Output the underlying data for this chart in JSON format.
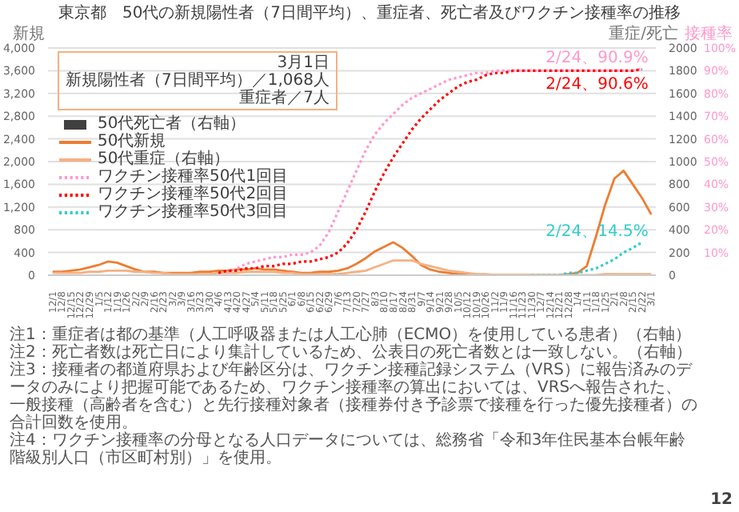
{
  "chart_data": {
    "type": "line",
    "title": "東京都　50代の新規陽性者（7日間平均）、重症者、死亡者及びワクチン接種率の推移",
    "ylabel": "新規",
    "y2label": "重症/死亡",
    "y3label": "接種率",
    "categories": [
      "12/1",
      "12/8",
      "12/15",
      "12/22",
      "12/29",
      "1/5",
      "1/12",
      "1/19",
      "1/26",
      "2/2",
      "2/9",
      "2/16",
      "2/23",
      "3/2",
      "3/9",
      "3/16",
      "3/23",
      "3/30",
      "4/6",
      "4/13",
      "4/20",
      "4/27",
      "5/4",
      "5/11",
      "5/18",
      "5/25",
      "6/1",
      "6/8",
      "6/15",
      "6/22",
      "6/29",
      "7/6",
      "7/13",
      "7/20",
      "7/27",
      "8/3",
      "8/10",
      "8/17",
      "8/24",
      "8/31",
      "9/7",
      "9/14",
      "9/21",
      "9/28",
      "10/5",
      "10/12",
      "10/19",
      "10/26",
      "11/2",
      "11/9",
      "11/16",
      "11/23",
      "11/30",
      "12/7",
      "12/14",
      "12/21",
      "12/28",
      "1/4",
      "1/11",
      "1/18",
      "1/25",
      "2/1",
      "2/8",
      "2/15",
      "2/22",
      "3/1"
    ],
    "series": [
      {
        "name": "50代死亡者（右軸）",
        "type": "bar",
        "axis": "y2",
        "color": "#404040",
        "values": [
          0,
          0,
          0,
          0,
          0,
          0,
          0,
          0,
          0,
          0,
          0,
          0,
          0,
          0,
          0,
          0,
          0,
          0,
          0,
          0,
          0,
          0,
          0,
          0,
          0,
          0,
          0,
          0,
          0,
          0,
          0,
          0,
          0,
          0,
          0,
          0,
          0,
          0,
          0,
          0,
          0,
          0,
          0,
          0,
          0,
          0,
          0,
          0,
          0,
          0,
          0,
          0,
          0,
          0,
          0,
          0,
          0,
          0,
          0,
          0,
          0,
          0,
          0,
          0,
          0,
          0
        ]
      },
      {
        "name": "50代新規",
        "color": "#ed7d31",
        "line_style": "solid",
        "values": [
          60,
          60,
          80,
          100,
          140,
          180,
          240,
          220,
          160,
          100,
          60,
          60,
          40,
          40,
          40,
          40,
          60,
          60,
          80,
          80,
          100,
          100,
          120,
          100,
          100,
          80,
          60,
          40,
          40,
          60,
          60,
          80,
          120,
          200,
          300,
          420,
          500,
          580,
          480,
          340,
          180,
          100,
          60,
          40,
          20,
          20,
          0,
          0,
          0,
          0,
          0,
          0,
          0,
          0,
          0,
          0,
          20,
          40,
          160,
          680,
          1240,
          1700,
          1840,
          1600,
          1360,
          1068
        ]
      },
      {
        "name": "50代重症（右軸）",
        "axis": "y2",
        "color": "#f4b183",
        "line_style": "solid",
        "values": [
          20,
          20,
          20,
          20,
          30,
          30,
          40,
          40,
          40,
          30,
          30,
          20,
          20,
          10,
          10,
          10,
          10,
          10,
          20,
          20,
          20,
          30,
          30,
          30,
          30,
          20,
          20,
          10,
          10,
          10,
          10,
          10,
          20,
          30,
          40,
          70,
          100,
          130,
          130,
          130,
          100,
          80,
          60,
          40,
          30,
          20,
          10,
          10,
          0,
          0,
          0,
          0,
          0,
          0,
          0,
          0,
          0,
          0,
          0,
          0,
          10,
          10,
          10,
          10,
          10,
          10
        ]
      },
      {
        "name": "ワクチン接種率50代1回目",
        "axis": "y3",
        "color": "#ff99cc",
        "line_style": "dotted",
        "values": [
          null,
          null,
          null,
          null,
          null,
          null,
          null,
          null,
          null,
          null,
          null,
          null,
          null,
          null,
          null,
          null,
          null,
          null,
          null,
          1,
          3,
          5,
          6,
          7,
          8,
          8,
          9,
          9,
          10,
          13,
          19,
          28,
          37,
          46,
          55,
          62,
          67,
          71,
          75,
          78,
          80,
          82,
          84,
          86,
          87,
          88,
          89,
          89,
          90,
          90,
          90,
          90,
          90,
          90,
          90,
          90,
          90,
          90,
          90,
          90,
          90,
          90,
          90,
          90,
          90.9,
          null
        ]
      },
      {
        "name": "ワクチン接種率50代2回目",
        "axis": "y3",
        "color": "#ff0000",
        "line_style": "dotted",
        "values": [
          null,
          null,
          null,
          null,
          null,
          null,
          null,
          null,
          null,
          null,
          null,
          null,
          null,
          null,
          null,
          null,
          null,
          null,
          1,
          2,
          2,
          3,
          3,
          4,
          4,
          5,
          5,
          6,
          6,
          7,
          8,
          10,
          14,
          20,
          28,
          37,
          45,
          52,
          58,
          64,
          69,
          73,
          77,
          80,
          83,
          85,
          86,
          88,
          89,
          89,
          90,
          90,
          90,
          90,
          90,
          90,
          90,
          90,
          90,
          90,
          90,
          90,
          90,
          90,
          90.6,
          null
        ]
      },
      {
        "name": "ワクチン接種率50代3回目",
        "axis": "y3",
        "color": "#33cccc",
        "line_style": "dotted",
        "values": [
          null,
          null,
          null,
          null,
          null,
          null,
          null,
          null,
          null,
          null,
          null,
          null,
          null,
          null,
          null,
          null,
          null,
          null,
          null,
          null,
          null,
          null,
          null,
          null,
          null,
          null,
          null,
          null,
          null,
          null,
          null,
          null,
          null,
          null,
          null,
          null,
          null,
          null,
          null,
          null,
          null,
          null,
          null,
          null,
          null,
          null,
          null,
          null,
          null,
          null,
          null,
          null,
          0,
          0,
          0,
          0,
          1,
          1,
          2,
          3,
          5,
          7,
          10,
          12,
          14.5,
          null
        ]
      }
    ],
    "ylim": [
      0,
      4000
    ],
    "yticks": [
      0,
      400,
      800,
      {
        "value": 1200,
        "label": "1,200"
      },
      {
        "value": 1600,
        "label": "1,600"
      },
      {
        "value": 2000,
        "label": "2,000"
      },
      {
        "value": 2400,
        "label": "2,400"
      },
      {
        "value": 2800,
        "label": "2,800"
      },
      {
        "value": 3200,
        "label": "3,200"
      },
      {
        "value": 3600,
        "label": "3,600"
      },
      {
        "value": 4000,
        "label": "4,000"
      }
    ],
    "y2lim": [
      0,
      2000
    ],
    "y2ticks": [
      0,
      200,
      400,
      600,
      800,
      1000,
      1200,
      1400,
      1600,
      1800,
      2000
    ],
    "y3lim": [
      0,
      100
    ],
    "y3ticks": [
      {
        "value": 10,
        "label": "10%"
      },
      {
        "value": 20,
        "label": "20%"
      },
      {
        "value": 30,
        "label": "30%"
      },
      {
        "value": 40,
        "label": "40%"
      },
      {
        "value": 50,
        "label": "50%"
      },
      {
        "value": 60,
        "label": "60%"
      },
      {
        "value": 70,
        "label": "70%"
      },
      {
        "value": 80,
        "label": "80%"
      },
      {
        "value": 90,
        "label": "90%"
      },
      {
        "value": 100,
        "label": "100%"
      }
    ],
    "grid": "y",
    "legend": "left",
    "annotations": [
      "2/24、90.9%",
      "2/24、90.6%",
      "2/24、14.5%",
      "3月1日",
      "新規陽性者（7日間平均）／1,068人",
      "重症者／7人",
      "注1：重症者は都の基準（人工呼吸器または人工心肺（ECMO）を使用している患者）（右軸）",
      "注2：死亡者数は死亡日により集計しているため、公表日の死亡者数とは一致しない。（右軸）",
      "注3：接種者の都道府県および年齢区分は、ワクチン接種記録システム（VRS）に報告済みのデータのみにより把握可能であるため、ワクチン接種率の算出においては、VRSへ報告された、一般接種（高齢者を含む）と先行接種対象者（接種券付き予診票で接種を行った優先接種者）の合計回数を使用。",
      "注4：ワクチン接種率の分母となる人口データについては、総務省「令和3年住民基本台帳年齢階級別人口（市区町村別）」を使用。",
      "12"
    ]
  }
}
